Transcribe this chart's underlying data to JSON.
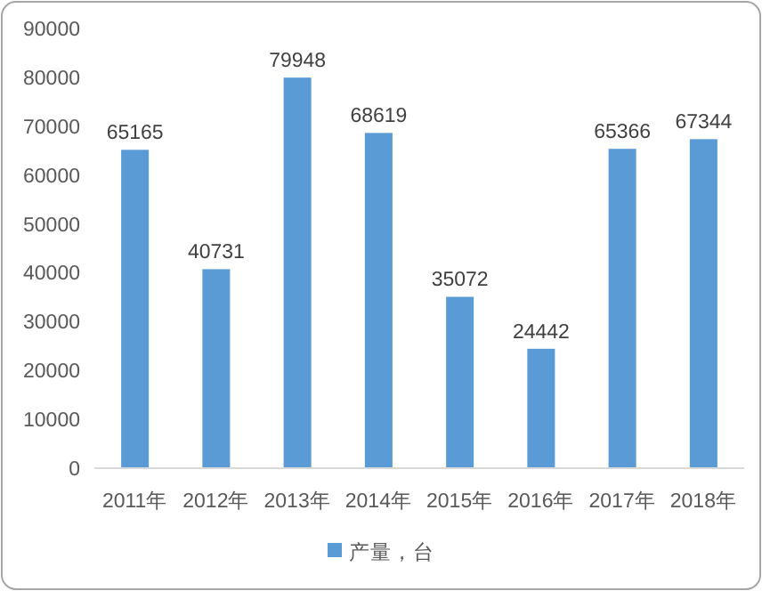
{
  "chart_data": {
    "type": "bar",
    "categories": [
      "2011年",
      "2012年",
      "2013年",
      "2014年",
      "2015年",
      "2016年",
      "2017年",
      "2018年"
    ],
    "series": [
      {
        "name": "产量，台",
        "color": "#5b9bd5",
        "values": [
          65165,
          40731,
          79948,
          68619,
          35072,
          24442,
          65366,
          67344
        ]
      }
    ],
    "ylim": [
      0,
      90000
    ],
    "yticks": [
      0,
      10000,
      20000,
      30000,
      40000,
      50000,
      60000,
      70000,
      80000,
      90000
    ],
    "data_labels": true,
    "legend": "bottom"
  }
}
